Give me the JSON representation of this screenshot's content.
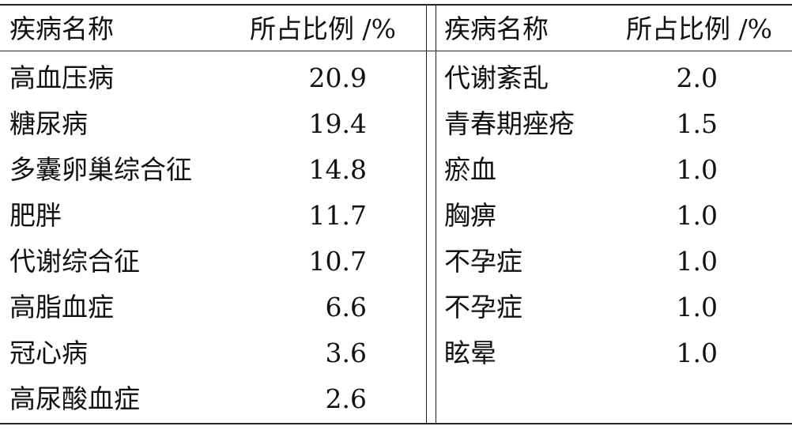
{
  "table": {
    "headers": {
      "left_name": "疾病名称",
      "left_value": "所占比例 /%",
      "right_name": "疾病名称",
      "right_value": "所占比例 /%"
    },
    "left_rows": [
      {
        "name": "高血压病",
        "value": "20.9"
      },
      {
        "name": "糖尿病",
        "value": "19.4"
      },
      {
        "name": "多囊卵巢综合征",
        "value": "14.8"
      },
      {
        "name": "肥胖",
        "value": "11.7"
      },
      {
        "name": "代谢综合征",
        "value": "10.7"
      },
      {
        "name": "高脂血症",
        "value": "6.6"
      },
      {
        "name": "冠心病",
        "value": "3.6"
      },
      {
        "name": "高尿酸血症",
        "value": "2.6"
      }
    ],
    "right_rows": [
      {
        "name": "代谢紊乱",
        "value": "2.0"
      },
      {
        "name": "青春期痤疮",
        "value": "1.5"
      },
      {
        "name": "瘀血",
        "value": "1.0"
      },
      {
        "name": "胸痹",
        "value": "1.0"
      },
      {
        "name": "不孕症",
        "value": "1.0"
      },
      {
        "name": "不孕症",
        "value": "1.0"
      },
      {
        "name": "眩晕",
        "value": "1.0"
      }
    ]
  }
}
